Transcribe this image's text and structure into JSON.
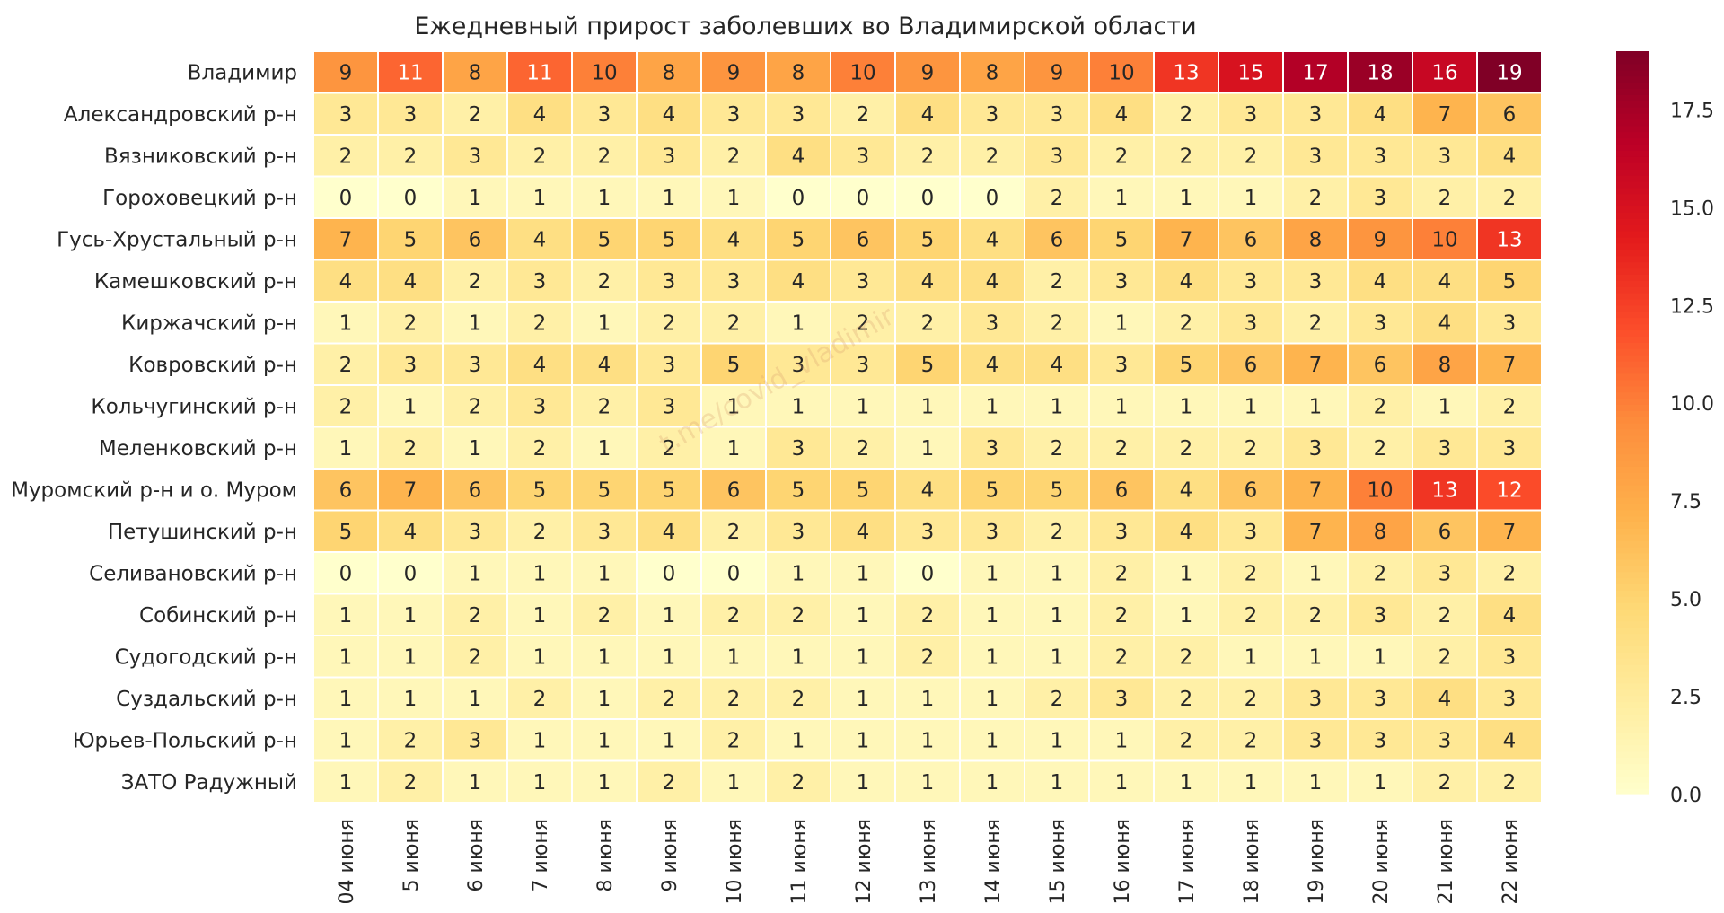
{
  "chart_data": {
    "type": "heatmap",
    "title": "Ежедневный прирост заболевших во Владимирской области",
    "watermark": "t.me/covid_vladimir",
    "rows": [
      "Владимир",
      "Александровский р-н",
      "Вязниковский р-н",
      "Гороховецкий р-н",
      "Гусь-Хрустальный р-н",
      "Камешковский р-н",
      "Киржачский р-н",
      "Ковровский р-н",
      "Кольчугинский р-н",
      "Меленковский р-н",
      "Муромский р-н и о. Муром",
      "Петушинский р-н",
      "Селивановский р-н",
      "Собинский р-н",
      "Судогодский р-н",
      "Суздальский р-н",
      "Юрьев-Польский р-н",
      "ЗАТО Радужный"
    ],
    "columns": [
      "04 июня",
      "5 июня",
      "6 июня",
      "7 июня",
      "8 июня",
      "9 июня",
      "10 июня",
      "11 июня",
      "12 июня",
      "13 июня",
      "14 июня",
      "15 июня",
      "16 июня",
      "17 июня",
      "18 июня",
      "19 июня",
      "20 июня",
      "21 июня",
      "22 июня"
    ],
    "values": [
      [
        9,
        11,
        8,
        11,
        10,
        8,
        9,
        8,
        10,
        9,
        8,
        9,
        10,
        13,
        15,
        17,
        18,
        16,
        19
      ],
      [
        3,
        3,
        2,
        4,
        3,
        4,
        3,
        3,
        2,
        4,
        3,
        3,
        4,
        2,
        3,
        3,
        4,
        7,
        6
      ],
      [
        2,
        2,
        3,
        2,
        2,
        3,
        2,
        4,
        3,
        2,
        2,
        3,
        2,
        2,
        2,
        3,
        3,
        3,
        4
      ],
      [
        0,
        0,
        1,
        1,
        1,
        1,
        1,
        0,
        0,
        0,
        0,
        2,
        1,
        1,
        1,
        2,
        3,
        2,
        2
      ],
      [
        7,
        5,
        6,
        4,
        5,
        5,
        4,
        5,
        6,
        5,
        4,
        6,
        5,
        7,
        6,
        8,
        9,
        10,
        13
      ],
      [
        4,
        4,
        2,
        3,
        2,
        3,
        3,
        4,
        3,
        4,
        4,
        2,
        3,
        4,
        3,
        3,
        4,
        4,
        5
      ],
      [
        1,
        2,
        1,
        2,
        1,
        2,
        2,
        1,
        2,
        2,
        3,
        2,
        1,
        2,
        3,
        2,
        3,
        4,
        3
      ],
      [
        2,
        3,
        3,
        4,
        4,
        3,
        5,
        3,
        3,
        5,
        4,
        4,
        3,
        5,
        6,
        7,
        6,
        8,
        7
      ],
      [
        2,
        1,
        2,
        3,
        2,
        3,
        1,
        1,
        1,
        1,
        1,
        1,
        1,
        1,
        1,
        1,
        2,
        1,
        2
      ],
      [
        1,
        2,
        1,
        2,
        1,
        2,
        1,
        3,
        2,
        1,
        3,
        2,
        2,
        2,
        2,
        3,
        2,
        3,
        3
      ],
      [
        6,
        7,
        6,
        5,
        5,
        5,
        6,
        5,
        5,
        4,
        5,
        5,
        6,
        4,
        6,
        7,
        10,
        13,
        12
      ],
      [
        5,
        4,
        3,
        2,
        3,
        4,
        2,
        3,
        4,
        3,
        3,
        2,
        3,
        4,
        3,
        7,
        8,
        6,
        7
      ],
      [
        0,
        0,
        1,
        1,
        1,
        0,
        0,
        1,
        1,
        0,
        1,
        1,
        2,
        1,
        2,
        1,
        2,
        3,
        2
      ],
      [
        1,
        1,
        2,
        1,
        2,
        1,
        2,
        2,
        1,
        2,
        1,
        1,
        2,
        1,
        2,
        2,
        3,
        2,
        4
      ],
      [
        1,
        1,
        2,
        1,
        1,
        1,
        1,
        1,
        1,
        2,
        1,
        1,
        2,
        2,
        1,
        1,
        1,
        2,
        3
      ],
      [
        1,
        1,
        1,
        2,
        1,
        2,
        2,
        2,
        1,
        1,
        1,
        2,
        3,
        2,
        2,
        3,
        3,
        4,
        3
      ],
      [
        1,
        2,
        3,
        1,
        1,
        1,
        2,
        1,
        1,
        1,
        1,
        1,
        1,
        2,
        2,
        3,
        3,
        3,
        4
      ],
      [
        1,
        2,
        1,
        1,
        1,
        2,
        1,
        2,
        1,
        1,
        1,
        1,
        1,
        1,
        1,
        1,
        1,
        2,
        2
      ]
    ],
    "vmin": 0,
    "vmax": 19,
    "colormap": "YlOrRd",
    "colorbar_ticks": [
      "0.0",
      "2.5",
      "5.0",
      "7.5",
      "10.0",
      "12.5",
      "15.0",
      "17.5"
    ],
    "colorbar_placement": "right",
    "grid": false
  }
}
